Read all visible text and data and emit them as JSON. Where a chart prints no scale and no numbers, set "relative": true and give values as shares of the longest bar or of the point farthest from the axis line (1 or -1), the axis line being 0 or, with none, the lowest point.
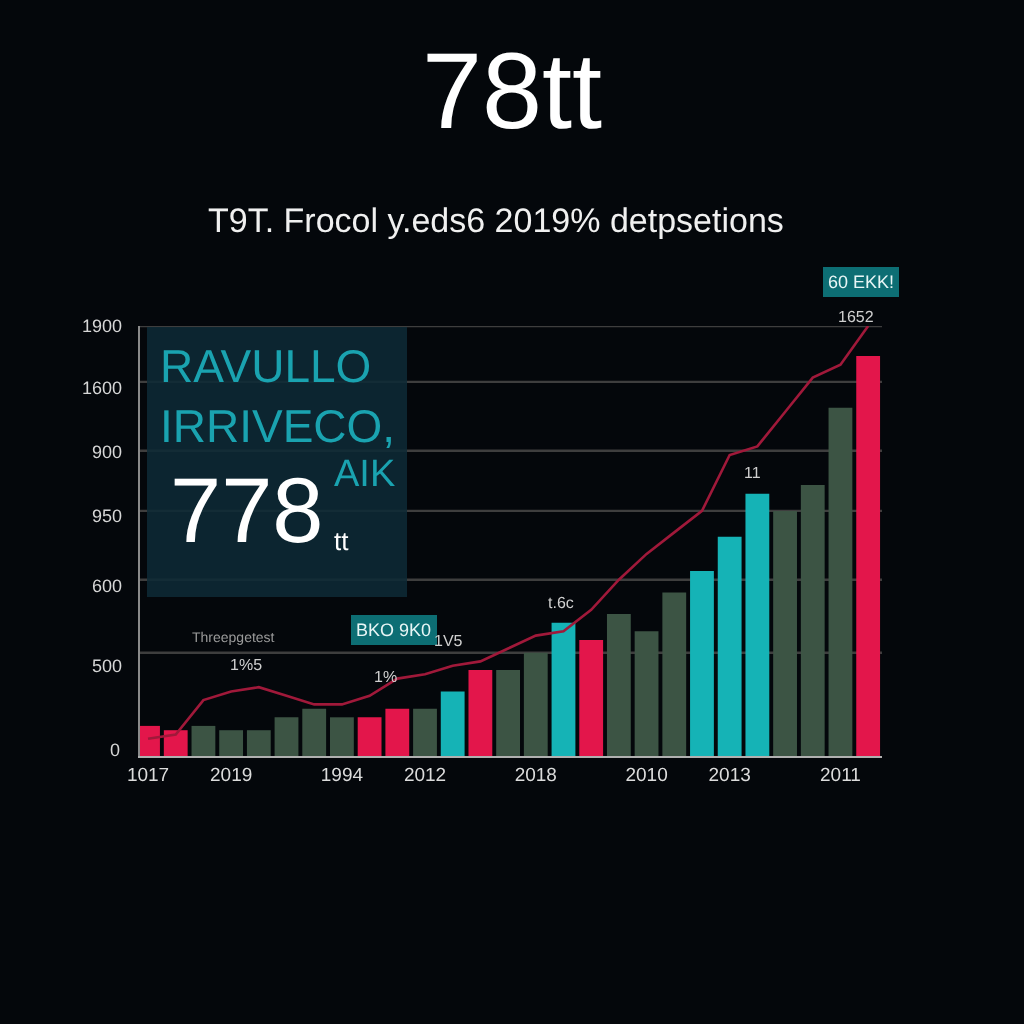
{
  "chart_data": {
    "type": "bar",
    "title": "78tt",
    "subtitle": "T9T. Frocol y.eds6 2019% detpsetions",
    "relative": true,
    "categories": [
      "1017",
      null,
      null,
      "2019",
      null,
      null,
      null,
      "1994",
      null,
      null,
      "2012",
      null,
      null,
      null,
      "2018",
      null,
      null,
      null,
      "2010",
      null,
      null,
      "2013",
      null,
      null,
      null,
      "2011",
      null
    ],
    "series": [
      {
        "colors": [
          "#e3164b",
          "#e3164b",
          "#3c5444",
          "#3c5444",
          "#3c5444",
          "#3c5444",
          "#3c5444",
          "#3c5444",
          "#e3164b",
          "#e3164b",
          "#3c5444",
          "#15b3b6",
          "#e3164b",
          "#3c5444",
          "#3c5444",
          "#15b3b6",
          "#e3164b",
          "#3c5444",
          "#3c5444",
          "#3c5444",
          "#15b3b6",
          "#15b3b6",
          "#15b3b6",
          "#3c5444",
          "#3c5444",
          "#3c5444",
          "#e3164b"
        ],
        "values": [
          0.07,
          0.06,
          0.07,
          0.06,
          0.06,
          0.09,
          0.11,
          0.09,
          0.09,
          0.11,
          0.11,
          0.15,
          0.2,
          0.2,
          0.24,
          0.31,
          0.27,
          0.33,
          0.29,
          0.38,
          0.43,
          0.51,
          0.61,
          0.57,
          0.63,
          0.81,
          0.93
        ]
      },
      {
        "type": "line",
        "color": "#a0193a",
        "values": [
          0.04,
          0.05,
          0.13,
          0.15,
          0.16,
          0.14,
          0.12,
          0.12,
          0.14,
          0.18,
          0.19,
          0.21,
          0.22,
          0.25,
          0.28,
          0.29,
          0.34,
          0.41,
          0.47,
          0.52,
          0.57,
          0.7,
          0.72,
          0.8,
          0.88,
          0.91,
          1
        ]
      }
    ],
    "ref_lines": [
      {
        "axis": "y",
        "value": 0.24,
        "color": "#3e3e3e"
      },
      {
        "axis": "y",
        "value": 0.41,
        "color": "#3e3e3e"
      },
      {
        "axis": "y",
        "value": 0.57,
        "color": "#3e3e3e"
      },
      {
        "axis": "y",
        "value": 0.71,
        "color": "#3e3e3e"
      },
      {
        "axis": "y",
        "value": 0.87,
        "color": "#3e3e3e"
      },
      {
        "axis": "y",
        "value": 1,
        "color": "#3e3e3e"
      }
    ],
    "annotations": [
      "RAVULLO\nIRRIVECO,",
      "AIK",
      "778",
      "tt",
      "Threepgetest",
      "1%5",
      "BKO 9K0",
      "1%",
      "1V5",
      "t.6c",
      "11",
      "60 EKK!",
      "1652",
      "1900",
      "1600",
      "900",
      "950",
      "600",
      "500",
      "0"
    ]
  }
}
